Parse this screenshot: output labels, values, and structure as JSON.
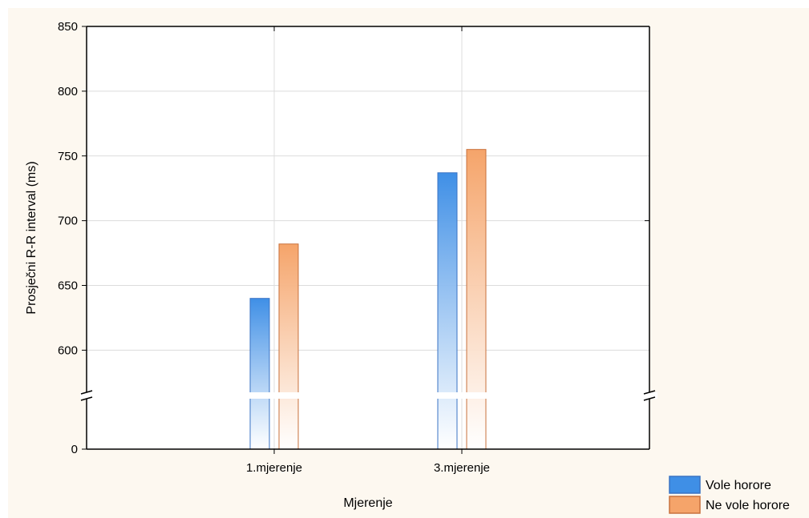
{
  "chart_data": {
    "type": "bar",
    "xlabel": "Mjerenje",
    "ylabel": "Prosječni R-R interval (ms)",
    "categories": [
      "1.mjerenje",
      "3.mjerenje"
    ],
    "series": [
      {
        "name": "Vole horore",
        "values": [
          640,
          737
        ],
        "color": "#3f8fe6"
      },
      {
        "name": "Ne vole horore",
        "values": [
          682,
          755
        ],
        "color": "#f5a46a"
      }
    ],
    "ylim": [
      0,
      850
    ],
    "axis_break": true,
    "yticks": [
      0,
      600,
      650,
      700,
      750,
      800,
      850
    ],
    "ytick_labels": [
      "0",
      "600",
      "650",
      "700",
      "750",
      "800",
      "850"
    ],
    "grid": true,
    "legend_position": "bottom-right"
  }
}
